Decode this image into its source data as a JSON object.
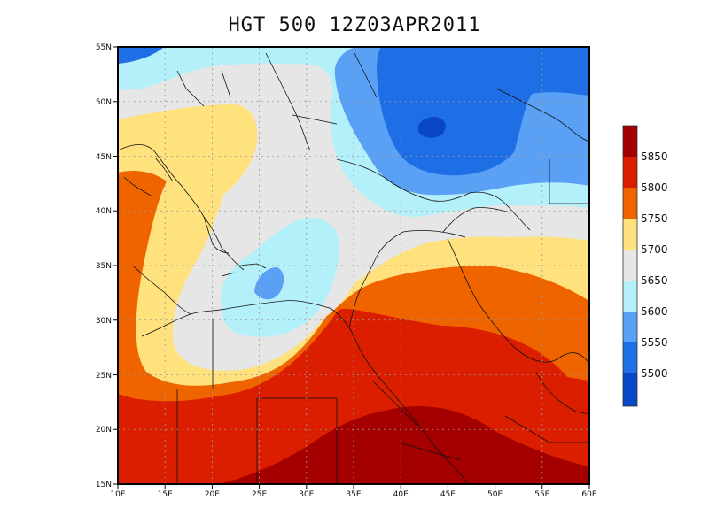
{
  "title": "HGT 500 12Z03APR2011",
  "lat_labels": [
    "55N",
    "50N",
    "45N",
    "40N",
    "35N",
    "30N",
    "25N",
    "20N",
    "15N"
  ],
  "lon_labels": [
    "10E",
    "15E",
    "20E",
    "25E",
    "30E",
    "35E",
    "40E",
    "45E",
    "50E",
    "55E",
    "60E"
  ],
  "colorbar": {
    "labels": [
      "5850",
      "5800",
      "5750",
      "5700",
      "5650",
      "5600",
      "5550",
      "5500"
    ],
    "colors": [
      "#a50000",
      "#dc1e00",
      "#f06400",
      "#ffe17d",
      "#e6e6e6",
      "#b4f0fa",
      "#5aa0f5",
      "#1e6ee6",
      "#0a46c8"
    ]
  },
  "colors": {
    "c5450": "#0a46c8",
    "c5500": "#1e6ee6",
    "c5550": "#5aa0f5",
    "c5600": "#b4f0fa",
    "c5650": "#e6e6e6",
    "c5700": "#ffe17d",
    "c5750": "#f06400",
    "c5800": "#dc1e00",
    "c5850": "#a50000"
  }
}
